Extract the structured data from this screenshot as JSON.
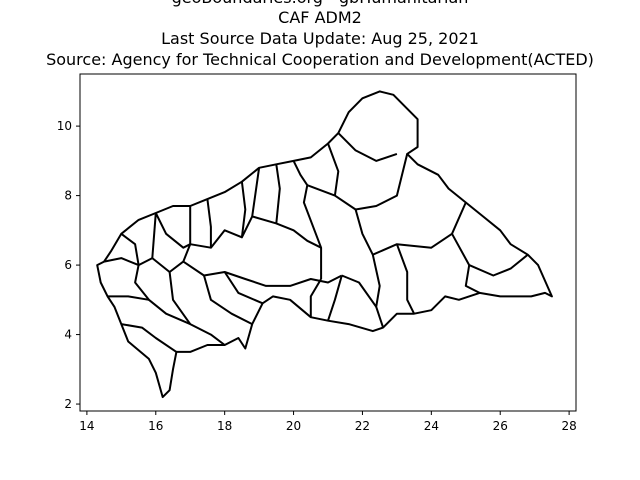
{
  "titles": [
    "geoBoundaries.org - gbHumanitarian",
    "CAF ADM2",
    "Last Source Data Update: Aug 25, 2021",
    "Source: Agency for Technical Cooperation and Development(ACTED)"
  ],
  "chart_data": {
    "type": "map",
    "xlim": [
      13.8,
      28.2
    ],
    "ylim": [
      1.8,
      11.5
    ],
    "x_ticks": [
      14,
      16,
      18,
      20,
      22,
      24,
      26,
      28
    ],
    "y_ticks": [
      2,
      4,
      6,
      8,
      10
    ],
    "grid": false,
    "boundaries": [
      {
        "points": [
          [
            14.5,
            6.1
          ],
          [
            14.7,
            6.4
          ],
          [
            15.0,
            6.9
          ],
          [
            15.5,
            7.3
          ],
          [
            16.0,
            7.5
          ],
          [
            16.5,
            7.7
          ],
          [
            17.0,
            7.7
          ],
          [
            17.5,
            7.9
          ],
          [
            18.0,
            8.1
          ],
          [
            18.5,
            8.4
          ],
          [
            19.0,
            8.8
          ],
          [
            19.5,
            8.9
          ],
          [
            20.0,
            9.0
          ],
          [
            20.5,
            9.1
          ],
          [
            21.0,
            9.5
          ],
          [
            21.3,
            9.8
          ],
          [
            21.6,
            10.4
          ],
          [
            22.0,
            10.8
          ],
          [
            22.5,
            11.0
          ],
          [
            22.9,
            10.9
          ],
          [
            23.2,
            10.6
          ],
          [
            23.6,
            10.2
          ],
          [
            23.6,
            9.4
          ],
          [
            23.3,
            9.2
          ],
          [
            23.6,
            8.9
          ],
          [
            24.2,
            8.6
          ],
          [
            24.5,
            8.2
          ],
          [
            25.0,
            7.8
          ],
          [
            25.5,
            7.4
          ],
          [
            26.0,
            7.0
          ],
          [
            26.3,
            6.6
          ],
          [
            26.8,
            6.3
          ],
          [
            27.1,
            6.0
          ],
          [
            27.5,
            5.1
          ],
          [
            27.3,
            5.2
          ],
          [
            26.9,
            5.1
          ],
          [
            26.5,
            5.1
          ],
          [
            26.0,
            5.1
          ],
          [
            25.4,
            5.2
          ],
          [
            24.8,
            5.0
          ],
          [
            24.4,
            5.1
          ],
          [
            24.0,
            4.7
          ],
          [
            23.5,
            4.6
          ],
          [
            23.0,
            4.6
          ],
          [
            22.6,
            4.2
          ],
          [
            22.3,
            4.1
          ],
          [
            21.6,
            4.3
          ],
          [
            21.0,
            4.4
          ],
          [
            20.5,
            4.5
          ],
          [
            19.9,
            5.0
          ],
          [
            19.4,
            5.1
          ],
          [
            19.1,
            4.9
          ],
          [
            18.8,
            4.3
          ],
          [
            18.6,
            3.6
          ],
          [
            18.4,
            3.9
          ],
          [
            18.0,
            3.7
          ],
          [
            17.5,
            3.7
          ],
          [
            17.0,
            3.5
          ],
          [
            16.6,
            3.5
          ],
          [
            16.5,
            3.0
          ],
          [
            16.4,
            2.4
          ],
          [
            16.2,
            2.2
          ],
          [
            16.0,
            2.9
          ],
          [
            15.8,
            3.3
          ],
          [
            15.2,
            3.8
          ],
          [
            15.0,
            4.3
          ],
          [
            14.8,
            4.8
          ],
          [
            14.6,
            5.1
          ],
          [
            14.4,
            5.5
          ],
          [
            14.3,
            6.0
          ],
          [
            14.5,
            6.1
          ]
        ]
      },
      {
        "points": [
          [
            14.5,
            6.1
          ],
          [
            15.0,
            6.2
          ],
          [
            15.5,
            6.0
          ],
          [
            15.9,
            6.2
          ]
        ]
      },
      {
        "points": [
          [
            15.9,
            6.2
          ],
          [
            16.0,
            7.5
          ]
        ]
      },
      {
        "points": [
          [
            15.9,
            6.2
          ],
          [
            16.4,
            5.8
          ],
          [
            16.8,
            6.1
          ],
          [
            17.0,
            6.6
          ],
          [
            17.0,
            7.7
          ]
        ]
      },
      {
        "points": [
          [
            17.0,
            6.6
          ],
          [
            17.6,
            6.5
          ],
          [
            18.0,
            7.0
          ],
          [
            18.5,
            6.8
          ],
          [
            18.8,
            7.4
          ],
          [
            19.0,
            8.8
          ]
        ]
      },
      {
        "points": [
          [
            16.8,
            6.1
          ],
          [
            17.4,
            5.7
          ],
          [
            18.0,
            5.8
          ],
          [
            18.6,
            5.6
          ],
          [
            19.2,
            5.4
          ],
          [
            19.9,
            5.4
          ],
          [
            20.5,
            5.6
          ],
          [
            21.0,
            5.5
          ],
          [
            21.4,
            5.7
          ]
        ]
      },
      {
        "points": [
          [
            18.8,
            7.4
          ],
          [
            19.5,
            7.2
          ],
          [
            20.0,
            7.0
          ],
          [
            20.4,
            6.7
          ],
          [
            20.8,
            6.5
          ]
        ]
      },
      {
        "points": [
          [
            20.0,
            9.0
          ],
          [
            20.2,
            8.6
          ],
          [
            20.4,
            8.3
          ],
          [
            20.3,
            7.8
          ],
          [
            20.8,
            6.5
          ],
          [
            20.8,
            5.6
          ]
        ]
      },
      {
        "points": [
          [
            20.4,
            8.3
          ],
          [
            21.2,
            8.0
          ],
          [
            21.8,
            7.6
          ],
          [
            22.4,
            7.7
          ],
          [
            23.0,
            8.0
          ],
          [
            23.3,
            9.2
          ]
        ]
      },
      {
        "points": [
          [
            21.8,
            7.6
          ],
          [
            22.0,
            6.9
          ],
          [
            22.3,
            6.3
          ],
          [
            22.5,
            5.4
          ],
          [
            22.4,
            4.8
          ],
          [
            22.6,
            4.2
          ]
        ]
      },
      {
        "points": [
          [
            22.3,
            6.3
          ],
          [
            23.0,
            6.6
          ],
          [
            24.0,
            6.5
          ],
          [
            24.6,
            6.9
          ],
          [
            25.0,
            7.8
          ]
        ]
      },
      {
        "points": [
          [
            23.0,
            6.6
          ],
          [
            23.3,
            5.8
          ],
          [
            23.3,
            5.0
          ],
          [
            23.5,
            4.6
          ]
        ]
      },
      {
        "points": [
          [
            24.6,
            6.9
          ],
          [
            25.1,
            6.0
          ],
          [
            25.8,
            5.7
          ],
          [
            26.3,
            5.9
          ],
          [
            26.8,
            6.3
          ]
        ]
      },
      {
        "points": [
          [
            25.1,
            6.0
          ],
          [
            25.0,
            5.4
          ],
          [
            25.4,
            5.2
          ]
        ]
      },
      {
        "points": [
          [
            15.5,
            6.0
          ],
          [
            15.4,
            5.5
          ],
          [
            15.8,
            5.0
          ],
          [
            16.3,
            4.6
          ],
          [
            17.0,
            4.3
          ],
          [
            17.6,
            4.0
          ],
          [
            18.0,
            3.7
          ]
        ]
      },
      {
        "points": [
          [
            14.6,
            5.1
          ],
          [
            15.2,
            5.1
          ],
          [
            15.8,
            5.0
          ]
        ]
      },
      {
        "points": [
          [
            15.0,
            4.3
          ],
          [
            15.6,
            4.2
          ],
          [
            16.0,
            3.9
          ],
          [
            16.6,
            3.5
          ]
        ]
      },
      {
        "points": [
          [
            16.4,
            5.8
          ],
          [
            16.5,
            5.0
          ],
          [
            17.0,
            4.3
          ]
        ]
      },
      {
        "points": [
          [
            17.4,
            5.7
          ],
          [
            17.6,
            5.0
          ],
          [
            18.2,
            4.6
          ],
          [
            18.8,
            4.3
          ]
        ]
      },
      {
        "points": [
          [
            18.0,
            5.8
          ],
          [
            18.4,
            5.2
          ],
          [
            19.1,
            4.9
          ]
        ]
      },
      {
        "points": [
          [
            16.0,
            7.5
          ],
          [
            16.3,
            6.9
          ],
          [
            16.8,
            6.5
          ],
          [
            17.0,
            6.6
          ]
        ]
      },
      {
        "points": [
          [
            15.0,
            6.9
          ],
          [
            15.4,
            6.6
          ],
          [
            15.5,
            6.0
          ]
        ]
      },
      {
        "points": [
          [
            21.4,
            5.7
          ],
          [
            21.2,
            5.0
          ],
          [
            21.0,
            4.4
          ]
        ]
      },
      {
        "points": [
          [
            21.4,
            5.7
          ],
          [
            21.9,
            5.5
          ],
          [
            22.4,
            4.8
          ]
        ]
      },
      {
        "points": [
          [
            20.8,
            5.6
          ],
          [
            20.5,
            5.1
          ],
          [
            20.5,
            4.5
          ]
        ]
      },
      {
        "points": [
          [
            18.5,
            8.4
          ],
          [
            18.6,
            7.6
          ],
          [
            18.5,
            6.8
          ]
        ]
      },
      {
        "points": [
          [
            19.5,
            8.9
          ],
          [
            19.6,
            8.2
          ],
          [
            19.5,
            7.2
          ]
        ]
      },
      {
        "points": [
          [
            21.3,
            9.8
          ],
          [
            21.8,
            9.3
          ],
          [
            22.4,
            9.0
          ],
          [
            23.0,
            9.2
          ]
        ]
      },
      {
        "points": [
          [
            21.2,
            8.0
          ],
          [
            21.3,
            8.7
          ],
          [
            21.0,
            9.5
          ]
        ]
      },
      {
        "points": [
          [
            17.5,
            7.9
          ],
          [
            17.6,
            7.1
          ],
          [
            17.6,
            6.5
          ]
        ]
      }
    ]
  }
}
